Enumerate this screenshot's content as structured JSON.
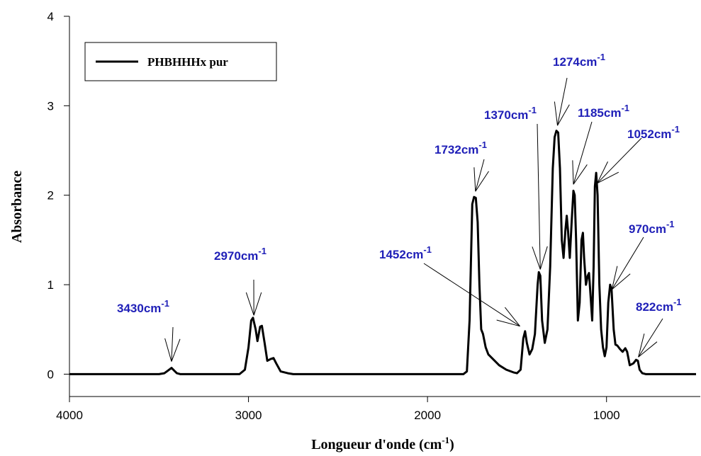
{
  "chart_data": {
    "type": "line",
    "xlabel": {
      "text": "Longueur d'onde (cm",
      "sup": "-1",
      "after": ")"
    },
    "ylabel": "Absorbance",
    "xlim": [
      4000,
      500
    ],
    "xticks": [
      4000,
      3000,
      2000,
      1000
    ],
    "ylim": [
      -0.25,
      4
    ],
    "yticks": [
      0,
      1,
      2,
      3,
      4
    ],
    "legend": "upper left",
    "x": [
      4000,
      3500,
      3470,
      3450,
      3430,
      3415,
      3400,
      3380,
      3050,
      3020,
      3000,
      2985,
      2975,
      2960,
      2950,
      2935,
      2925,
      2910,
      2895,
      2875,
      2860,
      2845,
      2820,
      2780,
      2750,
      1800,
      1780,
      1765,
      1750,
      1740,
      1730,
      1720,
      1710,
      1700,
      1690,
      1675,
      1660,
      1640,
      1600,
      1560,
      1520,
      1500,
      1480,
      1465,
      1455,
      1445,
      1430,
      1415,
      1400,
      1385,
      1378,
      1370,
      1360,
      1345,
      1330,
      1315,
      1300,
      1290,
      1280,
      1270,
      1260,
      1250,
      1240,
      1230,
      1222,
      1215,
      1205,
      1195,
      1185,
      1178,
      1170,
      1160,
      1150,
      1140,
      1132,
      1125,
      1115,
      1105,
      1098,
      1090,
      1080,
      1072,
      1065,
      1058,
      1050,
      1040,
      1030,
      1020,
      1010,
      1000,
      990,
      980,
      972,
      960,
      950,
      940,
      925,
      910,
      895,
      885,
      870,
      850,
      835,
      825,
      815,
      800,
      780,
      500
    ],
    "series": [
      {
        "name": "PHBHHHx pur",
        "color": "#000000",
        "values": [
          0,
          0,
          0.01,
          0.04,
          0.07,
          0.04,
          0.01,
          0,
          0,
          0.05,
          0.3,
          0.6,
          0.63,
          0.5,
          0.37,
          0.53,
          0.54,
          0.35,
          0.15,
          0.17,
          0.18,
          0.12,
          0.03,
          0.01,
          0,
          0,
          0.03,
          0.6,
          1.9,
          1.98,
          1.97,
          1.7,
          1.0,
          0.5,
          0.45,
          0.3,
          0.22,
          0.18,
          0.1,
          0.05,
          0.02,
          0.01,
          0.05,
          0.4,
          0.48,
          0.35,
          0.22,
          0.28,
          0.45,
          1.0,
          1.14,
          1.1,
          0.6,
          0.35,
          0.5,
          1.2,
          2.3,
          2.65,
          2.72,
          2.7,
          2.3,
          1.5,
          1.3,
          1.6,
          1.77,
          1.6,
          1.3,
          1.7,
          2.05,
          2.0,
          1.5,
          0.6,
          0.8,
          1.5,
          1.58,
          1.3,
          1.0,
          1.1,
          1.13,
          0.9,
          0.6,
          1.2,
          2.1,
          2.25,
          2.0,
          1.0,
          0.5,
          0.3,
          0.2,
          0.3,
          0.8,
          1.0,
          0.95,
          0.5,
          0.33,
          0.32,
          0.28,
          0.25,
          0.29,
          0.25,
          0.1,
          0.12,
          0.16,
          0.15,
          0.05,
          0.01,
          0,
          0
        ]
      }
    ],
    "annotations": [
      {
        "text": "3430cm",
        "sup": "-1",
        "x": 3430
      },
      {
        "text": "2970cm",
        "sup": "-1",
        "x": 2970
      },
      {
        "text": "1732cm",
        "sup": "-1",
        "x": 1732
      },
      {
        "text": "1452cm",
        "sup": "-1",
        "x": 1452
      },
      {
        "text": "1370cm",
        "sup": "-1",
        "x": 1370
      },
      {
        "text": "1274cm",
        "sup": "-1",
        "x": 1274
      },
      {
        "text": "1185cm",
        "sup": "-1",
        "x": 1185
      },
      {
        "text": "1052cm",
        "sup": "-1",
        "x": 1052
      },
      {
        "text": "970cm",
        "sup": "-1",
        "x": 970
      },
      {
        "text": "822cm",
        "sup": "-1",
        "x": 822
      }
    ]
  }
}
